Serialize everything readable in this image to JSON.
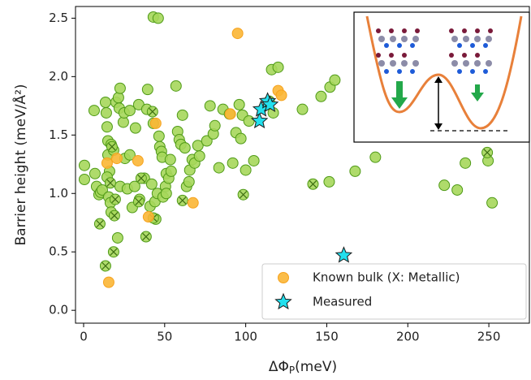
{
  "chart_data": {
    "type": "scatter",
    "xlabel": [
      "ΔΦ",
      "P",
      "(meV)"
    ],
    "ylabel": "Barrier height (meV/Å²)",
    "xlim": [
      -5,
      275
    ],
    "ylim": [
      -0.11,
      2.6
    ],
    "xticks": [
      0,
      50,
      100,
      150,
      200,
      250
    ],
    "yticks": [
      {
        "value": 0,
        "label": "0.0"
      },
      0.5,
      {
        "value": 1,
        "label": "1.0"
      },
      1.5,
      {
        "value": 2,
        "label": "2.0"
      },
      2.5
    ],
    "legend": "lower right",
    "series": [
      {
        "color": "#a6d75b",
        "edge": "#4f9a17",
        "marker": "circle",
        "x": [
          0.5,
          0.5,
          6.5,
          7,
          8,
          9.5,
          10.5,
          11.5,
          13.5,
          14,
          14.5,
          15,
          15,
          16,
          14.5,
          15.5,
          16.5,
          17,
          17,
          18.5,
          20,
          21.5,
          22.5,
          22,
          22.5,
          21,
          24.5,
          25,
          25.5,
          27,
          28.5,
          28.5,
          30,
          31.5,
          32,
          34,
          34.5,
          37.5,
          39,
          39.5,
          41,
          42,
          43,
          46,
          43,
          44,
          44.5,
          45.5,
          46.5,
          47,
          48,
          48.5,
          49,
          50.5,
          51,
          51,
          52.5,
          53.5,
          54,
          57,
          58,
          59,
          60,
          61,
          62.5,
          63.5,
          65,
          65.5,
          67,
          68.5,
          70.5,
          71.5,
          76,
          78,
          80,
          81,
          83.5,
          86,
          90,
          92,
          94,
          96,
          97,
          98,
          100,
          102,
          105,
          114.5,
          116,
          120,
          117,
          135,
          146.5,
          152,
          155,
          151.5,
          167.5,
          180,
          222.5,
          230.5,
          235.5,
          249.5,
          252
        ],
        "values": [
          1.24,
          1.12,
          1.71,
          1.17,
          1.06,
          0.99,
          1.01,
          1.03,
          1.78,
          1.69,
          1.57,
          1.45,
          1.33,
          1.19,
          1.14,
          0.97,
          0.92,
          0.84,
          1.42,
          1.37,
          1.78,
          1.82,
          1.9,
          1.73,
          1.06,
          0.62,
          1.61,
          1.69,
          1.3,
          1.04,
          1.71,
          1.33,
          0.88,
          1.06,
          1.56,
          1.76,
          0.95,
          1.13,
          1.72,
          1.89,
          0.89,
          1.08,
          2.51,
          2.5,
          1.6,
          0.93,
          0.78,
          1,
          1.49,
          1.4,
          1.36,
          1.31,
          0.97,
          1.06,
          1,
          1.17,
          1.13,
          1.29,
          1.19,
          1.92,
          1.53,
          1.46,
          1.42,
          1.67,
          1.39,
          1.06,
          1.1,
          1.2,
          1.29,
          1.26,
          1.41,
          1.32,
          1.45,
          1.75,
          1.51,
          1.58,
          1.22,
          1.72,
          1.68,
          1.26,
          1.52,
          1.76,
          1.47,
          1.67,
          1.2,
          1.62,
          1.28,
          1.79,
          2.06,
          2.08,
          1.69,
          1.72,
          1.83,
          1.91,
          1.97,
          1.1,
          1.19,
          1.31,
          1.07,
          1.03,
          1.26,
          1.28,
          0.92
        ]
      },
      {
        "color": "#a6d75b",
        "edge": "#4f9a17",
        "marker": "circle-x",
        "x": [
          10,
          13.5,
          18.5,
          19,
          16.5,
          19.5,
          17.5,
          34,
          35.5,
          38.5,
          42.5,
          43,
          61,
          98.5,
          141.5,
          249
        ],
        "values": [
          0.74,
          0.38,
          0.5,
          0.81,
          1.09,
          0.95,
          1.4,
          0.93,
          1.13,
          0.63,
          1.7,
          0.79,
          0.94,
          0.99,
          1.08,
          1.35
        ]
      },
      {
        "name": "Known bulk (X: Metallic)",
        "color": "#fbb635",
        "edge": "#f6a21d",
        "marker": "circle",
        "x": [
          15.5,
          14.5,
          20.5,
          33.5,
          40,
          44.5,
          67.5,
          90.5,
          95,
          120,
          122
        ],
        "values": [
          0.24,
          1.26,
          1.3,
          1.28,
          0.8,
          1.6,
          0.92,
          1.68,
          2.37,
          1.88,
          1.84
        ]
      },
      {
        "name": "Measured",
        "color": "#22e0ee",
        "edge": "#1a1a1a",
        "marker": "star",
        "x": [
          108.5,
          109.5,
          113.5,
          115,
          160.5
        ],
        "values": [
          1.62,
          1.72,
          1.79,
          1.76,
          0.47
        ]
      }
    ]
  }
}
